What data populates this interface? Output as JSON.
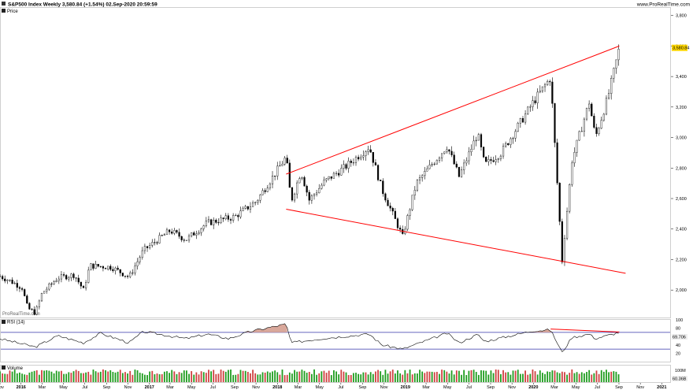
{
  "header": {
    "title": "S&P500 Index Weekly 3,580.84 (+1.54%) 02.Sep-2020 20:59:59",
    "source": "www.ProRealTime.com",
    "watermark": "ProRealTime.com"
  },
  "chart_data": [
    {
      "type": "candlestick",
      "panel_label": "Price",
      "last_price_label": "3,580.84",
      "ylim": [
        1820,
        3850
      ],
      "yticks": [
        2000,
        2200,
        2400,
        2600,
        2800,
        3000,
        3200,
        3400,
        3600,
        3800
      ],
      "ytick_labels": [
        "2,000",
        "2,200",
        "2,400",
        "2,600",
        "2,800",
        "3,000",
        "3,200",
        "3,400",
        "3,600",
        "3,800"
      ],
      "x_start": "2015-11-02",
      "x_end": "2021-01-25",
      "price_path": [
        [
          "2015-11-02",
          2090
        ],
        [
          "2015-12-01",
          2060
        ],
        [
          "2016-01-04",
          2015
        ],
        [
          "2016-01-20",
          1880
        ],
        [
          "2016-02-11",
          1850
        ],
        [
          "2016-03-01",
          1980
        ],
        [
          "2016-04-15",
          2080
        ],
        [
          "2016-06-01",
          2100
        ],
        [
          "2016-06-27",
          2000
        ],
        [
          "2016-07-15",
          2160
        ],
        [
          "2016-09-15",
          2150
        ],
        [
          "2016-11-04",
          2085
        ],
        [
          "2016-12-15",
          2260
        ],
        [
          "2017-03-01",
          2390
        ],
        [
          "2017-04-15",
          2330
        ],
        [
          "2017-06-15",
          2440
        ],
        [
          "2017-09-01",
          2480
        ],
        [
          "2017-11-01",
          2580
        ],
        [
          "2018-01-26",
          2873
        ],
        [
          "2018-02-09",
          2580
        ],
        [
          "2018-03-09",
          2780
        ],
        [
          "2018-04-02",
          2590
        ],
        [
          "2018-05-15",
          2710
        ],
        [
          "2018-07-15",
          2810
        ],
        [
          "2018-09-20",
          2940
        ],
        [
          "2018-10-26",
          2660
        ],
        [
          "2018-12-24",
          2350
        ],
        [
          "2019-02-01",
          2700
        ],
        [
          "2019-04-30",
          2945
        ],
        [
          "2019-06-03",
          2744
        ],
        [
          "2019-07-26",
          3025
        ],
        [
          "2019-08-15",
          2820
        ],
        [
          "2019-10-01",
          2900
        ],
        [
          "2019-12-31",
          3230
        ],
        [
          "2020-02-19",
          3393
        ],
        [
          "2020-03-23",
          2192
        ],
        [
          "2020-04-20",
          2850
        ],
        [
          "2020-06-08",
          3232
        ],
        [
          "2020-06-26",
          3000
        ],
        [
          "2020-08-01",
          3270
        ],
        [
          "2020-09-02",
          3588
        ]
      ],
      "trendlines": [
        {
          "from": [
            "2018-01-26",
            2760
          ],
          "to": [
            "2020-09-02",
            3600
          ],
          "color": "#ff0000"
        },
        {
          "from": [
            "2018-01-26",
            2530
          ],
          "to": [
            "2020-09-20",
            2110
          ],
          "color": "#ff0000"
        }
      ]
    },
    {
      "type": "line",
      "panel_label": "RSI (14)",
      "last_value_label": "69.706",
      "ylim": [
        0,
        100
      ],
      "yticks": [
        100,
        80,
        60,
        40,
        20
      ],
      "levels": [
        70,
        30
      ],
      "overbought_fill": "#d9a89b",
      "rsi_path": [
        [
          "2015-11-02",
          55
        ],
        [
          "2016-02-11",
          35
        ],
        [
          "2016-04-15",
          62
        ],
        [
          "2016-06-27",
          45
        ],
        [
          "2016-08-15",
          68
        ],
        [
          "2016-11-04",
          45
        ],
        [
          "2016-12-15",
          72
        ],
        [
          "2017-04-15",
          55
        ],
        [
          "2017-06-15",
          66
        ],
        [
          "2017-08-15",
          55
        ],
        [
          "2017-10-15",
          72
        ],
        [
          "2018-01-26",
          90
        ],
        [
          "2018-02-09",
          45
        ],
        [
          "2018-05-15",
          56
        ],
        [
          "2018-09-20",
          66
        ],
        [
          "2018-10-26",
          40
        ],
        [
          "2018-12-24",
          30
        ],
        [
          "2019-04-30",
          68
        ],
        [
          "2019-06-03",
          45
        ],
        [
          "2019-07-26",
          65
        ],
        [
          "2019-08-15",
          48
        ],
        [
          "2019-12-31",
          74
        ],
        [
          "2020-02-19",
          76
        ],
        [
          "2020-03-23",
          22
        ],
        [
          "2020-04-20",
          58
        ],
        [
          "2020-06-08",
          66
        ],
        [
          "2020-06-26",
          55
        ],
        [
          "2020-09-02",
          70
        ]
      ],
      "divergence_line": {
        "from": [
          "2020-02-19",
          78
        ],
        "to": [
          "2020-09-02",
          71
        ],
        "color": "#ff0000"
      }
    },
    {
      "type": "bar",
      "panel_label": "Volume",
      "last_value_label": "60.36B",
      "ytick_label": "100M",
      "ytick_value": 100,
      "ylim": [
        0,
        130
      ],
      "bar_color": "#1f9d1f",
      "down_color": "#d04040"
    }
  ],
  "xaxis": {
    "labels": [
      {
        "date": "2015-11-02",
        "text": "Nov",
        "bold": false
      },
      {
        "date": "2016-01-01",
        "text": "2016",
        "bold": true
      },
      {
        "date": "2016-03-01",
        "text": "Mar",
        "bold": false
      },
      {
        "date": "2016-05-01",
        "text": "May",
        "bold": false
      },
      {
        "date": "2016-07-01",
        "text": "Jul",
        "bold": false
      },
      {
        "date": "2016-09-01",
        "text": "Sep",
        "bold": false
      },
      {
        "date": "2016-11-01",
        "text": "Nov",
        "bold": false
      },
      {
        "date": "2017-01-01",
        "text": "2017",
        "bold": true
      },
      {
        "date": "2017-03-01",
        "text": "Mar",
        "bold": false
      },
      {
        "date": "2017-05-01",
        "text": "May",
        "bold": false
      },
      {
        "date": "2017-07-01",
        "text": "Jul",
        "bold": false
      },
      {
        "date": "2017-09-01",
        "text": "Sep",
        "bold": false
      },
      {
        "date": "2017-11-01",
        "text": "Nov",
        "bold": false
      },
      {
        "date": "2018-01-01",
        "text": "2018",
        "bold": true
      },
      {
        "date": "2018-03-01",
        "text": "Mar",
        "bold": false
      },
      {
        "date": "2018-05-01",
        "text": "May",
        "bold": false
      },
      {
        "date": "2018-07-01",
        "text": "Jul",
        "bold": false
      },
      {
        "date": "2018-09-01",
        "text": "Sep",
        "bold": false
      },
      {
        "date": "2018-11-01",
        "text": "Nov",
        "bold": false
      },
      {
        "date": "2019-01-01",
        "text": "2019",
        "bold": true
      },
      {
        "date": "2019-03-01",
        "text": "Mar",
        "bold": false
      },
      {
        "date": "2019-05-01",
        "text": "May",
        "bold": false
      },
      {
        "date": "2019-07-01",
        "text": "Jul",
        "bold": false
      },
      {
        "date": "2019-09-01",
        "text": "Sep",
        "bold": false
      },
      {
        "date": "2019-11-01",
        "text": "Nov",
        "bold": false
      },
      {
        "date": "2020-01-01",
        "text": "2020",
        "bold": true
      },
      {
        "date": "2020-03-01",
        "text": "Mar",
        "bold": false
      },
      {
        "date": "2020-05-01",
        "text": "May",
        "bold": false
      },
      {
        "date": "2020-07-01",
        "text": "Jul",
        "bold": false
      },
      {
        "date": "2020-09-01",
        "text": "Sep",
        "bold": false
      },
      {
        "date": "2020-11-01",
        "text": "Nov",
        "bold": false
      },
      {
        "date": "2021-01-01",
        "text": "2021",
        "bold": true
      }
    ]
  },
  "colors": {
    "trendline": "#ff0000",
    "rsi_line": "#000000",
    "rsi_levels": "#3333aa",
    "price_label_bg": "#ffd700",
    "grid": "#dddddd"
  }
}
